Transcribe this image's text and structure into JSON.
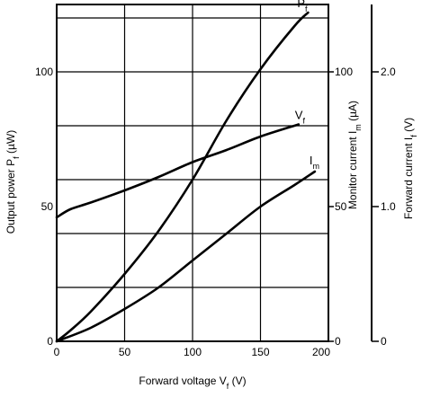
{
  "chart_data": {
    "type": "line",
    "title": "",
    "xlabel": {
      "main": "Forward voltage V",
      "sub": "f",
      "unit": " (V)"
    },
    "xlim": [
      0,
      200
    ],
    "xticks": [
      "0",
      "50",
      "100",
      "150",
      "200"
    ],
    "grid": true,
    "axes": {
      "left": {
        "label": {
          "main": "Output power P",
          "sub": "f",
          "unit": " (µW)"
        },
        "ylim": [
          0,
          125
        ],
        "ticks": [
          "0",
          "50",
          "100"
        ]
      },
      "right1": {
        "label": {
          "main": "Monitor current I",
          "sub": "m",
          "unit": " (µA)"
        },
        "ylim": [
          0,
          125
        ],
        "ticks": [
          "0",
          "50",
          "100"
        ]
      },
      "right2": {
        "label": {
          "main": "Forward current I",
          "sub": "f",
          "unit": " (V)"
        },
        "ylim": [
          0,
          2.5
        ],
        "ticks": [
          "0",
          "1.0",
          "2.0"
        ]
      }
    },
    "series": [
      {
        "name": "P",
        "name_sub": "f",
        "axis": "left",
        "points": [
          [
            0,
            0
          ],
          [
            10,
            4
          ],
          [
            25,
            11
          ],
          [
            50,
            25
          ],
          [
            75,
            41
          ],
          [
            100,
            60
          ],
          [
            125,
            82
          ],
          [
            150,
            101
          ],
          [
            175,
            117
          ],
          [
            185,
            122
          ]
        ]
      },
      {
        "name": "V",
        "name_sub": "f",
        "axis": "right2",
        "points": [
          [
            0,
            0.92
          ],
          [
            10,
            0.98
          ],
          [
            25,
            1.03
          ],
          [
            50,
            1.12
          ],
          [
            75,
            1.22
          ],
          [
            100,
            1.33
          ],
          [
            125,
            1.42
          ],
          [
            150,
            1.52
          ],
          [
            178,
            1.61
          ]
        ]
      },
      {
        "name": "I",
        "name_sub": "m",
        "axis": "right1",
        "points": [
          [
            0,
            0
          ],
          [
            25,
            5
          ],
          [
            50,
            12
          ],
          [
            75,
            20
          ],
          [
            100,
            30
          ],
          [
            125,
            40
          ],
          [
            150,
            50
          ],
          [
            175,
            58
          ],
          [
            190,
            63
          ]
        ]
      }
    ]
  }
}
